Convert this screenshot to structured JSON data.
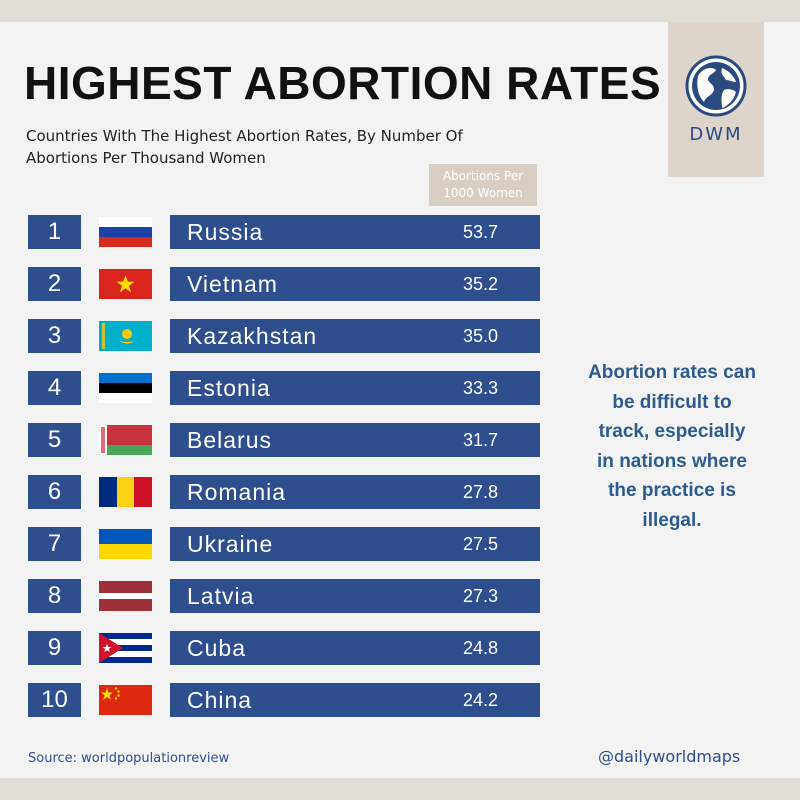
{
  "header": {
    "title": "HIGHEST ABORTION RATES",
    "subtitle_line1": "Countries With The Highest Abortion Rates, By Number Of",
    "subtitle_line2": "Abortions Per Thousand Women"
  },
  "logo": {
    "text": "DWM",
    "icon": "globe-icon"
  },
  "table": {
    "column_header_line1": "Abortions Per",
    "column_header_line2": "1000 Women",
    "rows": [
      {
        "rank": "1",
        "country": "Russia",
        "value": "53.7",
        "flag": "russia-flag-icon"
      },
      {
        "rank": "2",
        "country": "Vietnam",
        "value": "35.2",
        "flag": "vietnam-flag-icon"
      },
      {
        "rank": "3",
        "country": "Kazakhstan",
        "value": "35.0",
        "flag": "kazakhstan-flag-icon"
      },
      {
        "rank": "4",
        "country": "Estonia",
        "value": "33.3",
        "flag": "estonia-flag-icon"
      },
      {
        "rank": "5",
        "country": "Belarus",
        "value": "31.7",
        "flag": "belarus-flag-icon"
      },
      {
        "rank": "6",
        "country": "Romania",
        "value": "27.8",
        "flag": "romania-flag-icon"
      },
      {
        "rank": "7",
        "country": "Ukraine",
        "value": "27.5",
        "flag": "ukraine-flag-icon"
      },
      {
        "rank": "8",
        "country": "Latvia",
        "value": "27.3",
        "flag": "latvia-flag-icon"
      },
      {
        "rank": "9",
        "country": "Cuba",
        "value": "24.8",
        "flag": "cuba-flag-icon"
      },
      {
        "rank": "10",
        "country": "China",
        "value": "24.2",
        "flag": "china-flag-icon"
      }
    ]
  },
  "note": {
    "lines": [
      "Abortion rates can",
      "be difficult to",
      "track, especially",
      "in nations where",
      "the practice is",
      "illegal."
    ]
  },
  "footer": {
    "source": "Source: worldpopulationreview",
    "handle": "@dailyworldmaps"
  },
  "colors": {
    "accent": "#2e4e8e",
    "background": "#f3f3f3",
    "frame": "#e2dcd6",
    "tan": "#d7cdc3"
  }
}
